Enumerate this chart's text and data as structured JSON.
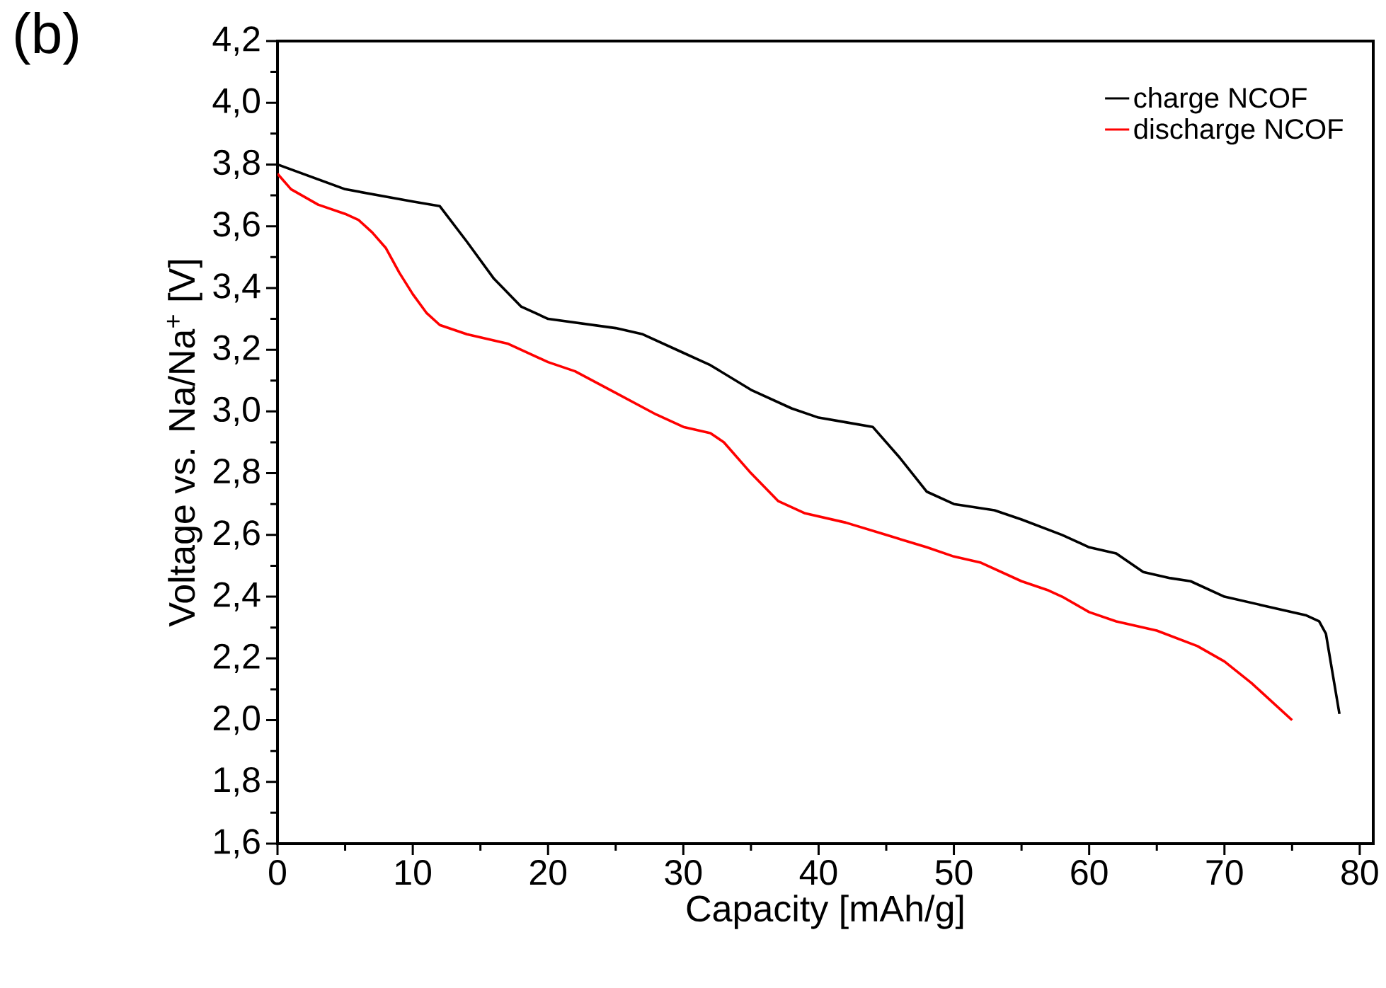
{
  "chart_data": {
    "type": "line",
    "xlabel": "Capacity [mAh/g]",
    "ylabel": "Voltage vs. Na/Na$^{+}$ [V]",
    "annotations": [
      "(b)"
    ],
    "xlim": [
      0,
      81
    ],
    "ylim": [
      1.6,
      4.2
    ],
    "xticks": [
      0,
      10,
      20,
      30,
      40,
      50,
      60,
      70,
      80
    ],
    "yticks": [
      {
        "value": 1.6,
        "label": "1,6"
      },
      {
        "value": 1.8,
        "label": "1,8"
      },
      {
        "value": 2.0,
        "label": "2,0"
      },
      {
        "value": 2.2,
        "label": "2,2"
      },
      {
        "value": 2.4,
        "label": "2,4"
      },
      {
        "value": 2.6,
        "label": "2,6"
      },
      {
        "value": 2.8,
        "label": "2,8"
      },
      {
        "value": 3.0,
        "label": "3,0"
      },
      {
        "value": 3.2,
        "label": "3,2"
      },
      {
        "value": 3.4,
        "label": "3,4"
      },
      {
        "value": 3.6,
        "label": "3,6"
      },
      {
        "value": 3.8,
        "label": "3,8"
      },
      {
        "value": 4.0,
        "label": "4,0"
      },
      {
        "value": 4.2,
        "label": "4,2"
      }
    ],
    "legend": "top right",
    "marker": "none",
    "line_style": "solid",
    "grid": false,
    "series": [
      {
        "name": "charge NCOF",
        "color": "#000000",
        "x": [
          0,
          5,
          10,
          12,
          14,
          16,
          18,
          20,
          25,
          27,
          30,
          32,
          35,
          38,
          40,
          42,
          44,
          46,
          48,
          50,
          53,
          55,
          58,
          60,
          62,
          64,
          66,
          67.5,
          70,
          73,
          76,
          77,
          77.5,
          78,
          78.5
        ],
        "values": [
          3.8,
          3.72,
          3.68,
          3.665,
          3.55,
          3.43,
          3.34,
          3.3,
          3.27,
          3.25,
          3.19,
          3.15,
          3.07,
          3.01,
          2.98,
          2.965,
          2.95,
          2.85,
          2.74,
          2.7,
          2.68,
          2.65,
          2.6,
          2.56,
          2.54,
          2.48,
          2.46,
          2.45,
          2.4,
          2.37,
          2.34,
          2.32,
          2.28,
          2.15,
          2.02
        ]
      },
      {
        "name": "discharge NCOF",
        "color": "#ff0000",
        "x": [
          0,
          1,
          3,
          5,
          6,
          7,
          8,
          9,
          10,
          11,
          12,
          14,
          17,
          20,
          22,
          25,
          28,
          30,
          32,
          33,
          35,
          37,
          39,
          42,
          45,
          48,
          50,
          52,
          55,
          57,
          58,
          60,
          62,
          65,
          68,
          70,
          72,
          75
        ],
        "values": [
          3.77,
          3.72,
          3.67,
          3.64,
          3.62,
          3.58,
          3.53,
          3.45,
          3.38,
          3.32,
          3.28,
          3.25,
          3.22,
          3.16,
          3.13,
          3.06,
          2.99,
          2.95,
          2.93,
          2.9,
          2.8,
          2.71,
          2.67,
          2.64,
          2.6,
          2.56,
          2.53,
          2.51,
          2.45,
          2.42,
          2.4,
          2.35,
          2.32,
          2.29,
          2.24,
          2.19,
          2.12,
          2.0
        ]
      }
    ]
  }
}
